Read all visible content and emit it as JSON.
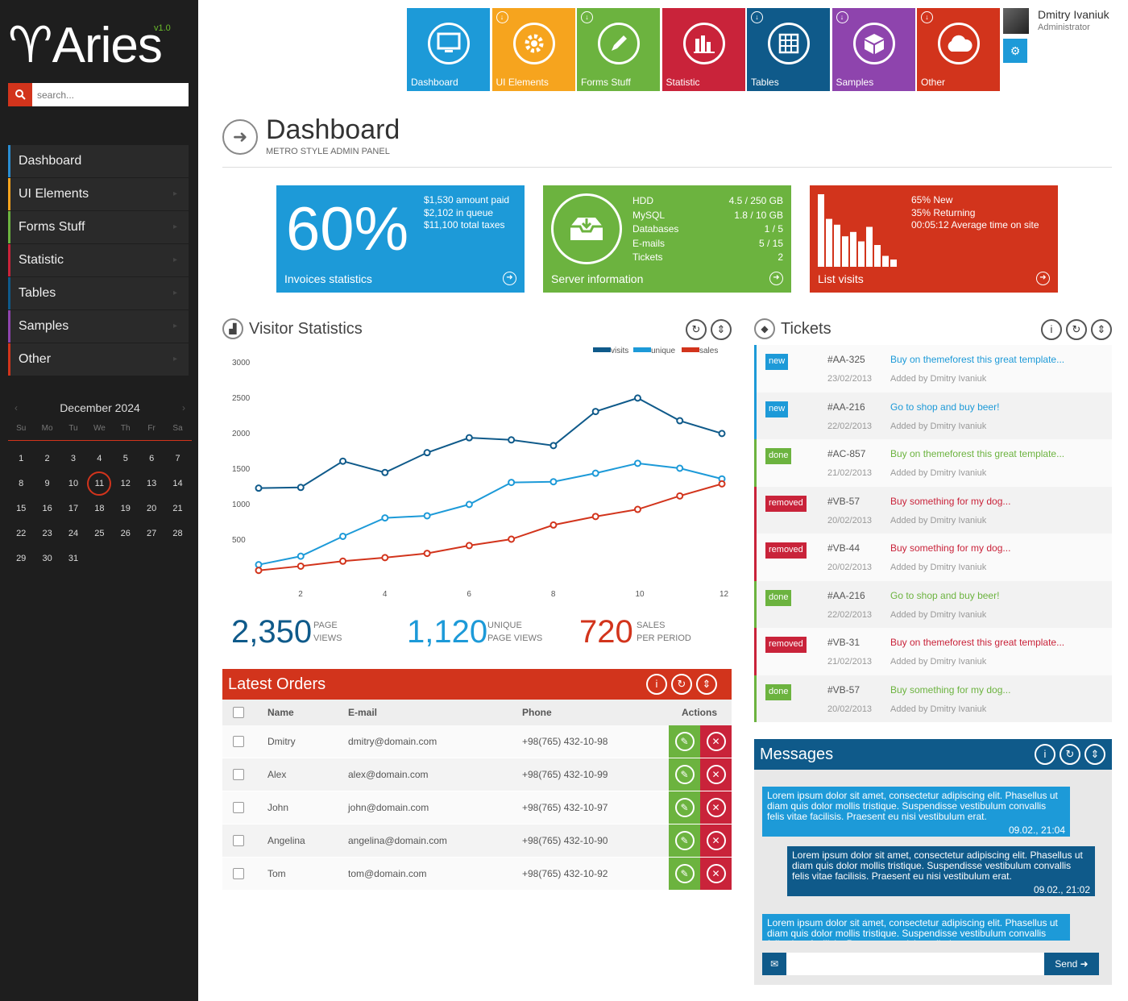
{
  "brand": {
    "name": "Aries",
    "version": "v1.0"
  },
  "search": {
    "placeholder": "search..."
  },
  "nav": [
    "Dashboard",
    "UI Elements",
    "Forms Stuff",
    "Statistic",
    "Tables",
    "Samples",
    "Other"
  ],
  "calendar": {
    "month": "December 2024",
    "dow": [
      "Su",
      "Mo",
      "Tu",
      "We",
      "Th",
      "Fr",
      "Sa"
    ],
    "today": 11,
    "days": [
      "1",
      "2",
      "3",
      "4",
      "5",
      "6",
      "7",
      "8",
      "9",
      "10",
      "11",
      "12",
      "13",
      "14",
      "15",
      "16",
      "17",
      "18",
      "19",
      "20",
      "21",
      "22",
      "23",
      "24",
      "25",
      "26",
      "27",
      "28",
      "29",
      "30",
      "31"
    ]
  },
  "tiles": [
    {
      "label": "Dashboard",
      "color": "#1d9ad8",
      "icon": "monitor-icon",
      "dl": false
    },
    {
      "label": "UI Elements",
      "color": "#f6a41e",
      "icon": "gear-icon",
      "dl": true
    },
    {
      "label": "Forms Stuff",
      "color": "#6cb33f",
      "icon": "pencil-icon",
      "dl": true
    },
    {
      "label": "Statistic",
      "color": "#c9233a",
      "icon": "bar-chart-icon",
      "dl": false
    },
    {
      "label": "Tables",
      "color": "#0f5a8a",
      "icon": "grid-icon",
      "dl": true
    },
    {
      "label": "Samples",
      "color": "#8e44ad",
      "icon": "box-icon",
      "dl": true
    },
    {
      "label": "Other",
      "color": "#d2341c",
      "icon": "cloud-icon",
      "dl": true
    }
  ],
  "user": {
    "name": "Dmitry Ivaniuk",
    "role": "Administrator"
  },
  "page": {
    "title": "Dashboard",
    "subtitle": "METRO STYLE ADMIN PANEL"
  },
  "stats": {
    "invoices": {
      "big": "60%",
      "lines": [
        "$1,530 amount paid",
        "$2,102 in queue",
        "$11,100 total taxes"
      ],
      "footer": "Invoices statistics",
      "color": "#1d9ad8"
    },
    "server": {
      "rows": [
        [
          "HDD",
          "4.5 / 250 GB"
        ],
        [
          "MySQL",
          "1.8 / 10 GB"
        ],
        [
          "Databases",
          "1 / 5"
        ],
        [
          "E-mails",
          "5 / 15"
        ],
        [
          "Tickets",
          "2"
        ]
      ],
      "footer": "Server information",
      "color": "#6cb33f"
    },
    "visits": {
      "lines": [
        "65% New",
        "35% Returning",
        "00:05:12 Average time on site"
      ],
      "footer": "List visits",
      "color": "#d2341c",
      "bars": [
        100,
        66,
        58,
        42,
        48,
        35,
        55,
        30,
        15,
        10
      ]
    }
  },
  "visitor": {
    "title": "Visitor Statistics",
    "totals": [
      {
        "value": "2,350",
        "l1": "PAGE",
        "l2": "VIEWS",
        "color": "#0f5a8a"
      },
      {
        "value": "1,120",
        "l1": "UNIQUE",
        "l2": "PAGE VIEWS",
        "color": "#1d9ad8"
      },
      {
        "value": "720",
        "l1": "SALES",
        "l2": "PER PERIOD",
        "color": "#d2341c"
      }
    ]
  },
  "chart_data": {
    "type": "line",
    "x": [
      1,
      2,
      3,
      4,
      5,
      6,
      7,
      8,
      9,
      10,
      11,
      12
    ],
    "ylim": [
      0,
      3000
    ],
    "yticks": [
      500,
      1000,
      1500,
      2000,
      2500,
      3000
    ],
    "xticks": [
      2,
      4,
      6,
      8,
      10,
      12
    ],
    "series": [
      {
        "name": "visits",
        "color": "#0f5a8a",
        "values": [
          1220,
          1230,
          1600,
          1440,
          1720,
          1930,
          1900,
          1820,
          2300,
          2490,
          2170,
          1990
        ]
      },
      {
        "name": "unique",
        "color": "#1d9ad8",
        "values": [
          140,
          260,
          540,
          800,
          830,
          990,
          1300,
          1310,
          1430,
          1570,
          1500,
          1350
        ]
      },
      {
        "name": "sales",
        "color": "#d2341c",
        "values": [
          60,
          120,
          190,
          240,
          300,
          410,
          500,
          700,
          820,
          920,
          1110,
          1280
        ]
      }
    ]
  },
  "orders": {
    "title": "Latest Orders",
    "headers": [
      "Name",
      "E-mail",
      "Phone",
      "Actions"
    ],
    "rows": [
      [
        "Dmitry",
        "dmitry@domain.com",
        "+98(765) 432-10-98"
      ],
      [
        "Alex",
        "alex@domain.com",
        "+98(765) 432-10-99"
      ],
      [
        "John",
        "john@domain.com",
        "+98(765) 432-10-97"
      ],
      [
        "Angelina",
        "angelina@domain.com",
        "+98(765) 432-10-90"
      ],
      [
        "Tom",
        "tom@domain.com",
        "+98(765) 432-10-92"
      ]
    ]
  },
  "tickets": {
    "title": "Tickets",
    "items": [
      {
        "status": "new",
        "id": "#AA-325",
        "date": "23/02/2013",
        "title": "Buy on themeforest this great template...",
        "by": "Added by Dmitry Ivaniuk"
      },
      {
        "status": "new",
        "id": "#AA-216",
        "date": "22/02/2013",
        "title": "Go to shop and buy beer!",
        "by": "Added by Dmitry Ivaniuk"
      },
      {
        "status": "done",
        "id": "#AC-857",
        "date": "21/02/2013",
        "title": "Buy on themeforest this great template...",
        "by": "Added by Dmitry Ivaniuk"
      },
      {
        "status": "removed",
        "id": "#VB-57",
        "date": "20/02/2013",
        "title": "Buy something for my dog...",
        "by": "Added by Dmitry Ivaniuk"
      },
      {
        "status": "removed",
        "id": "#VB-44",
        "date": "20/02/2013",
        "title": "Buy something for my dog...",
        "by": "Added by Dmitry Ivaniuk"
      },
      {
        "status": "done",
        "id": "#AA-216",
        "date": "22/02/2013",
        "title": "Go to shop and buy beer!",
        "by": "Added by Dmitry Ivaniuk"
      },
      {
        "status": "removed",
        "id": "#VB-31",
        "date": "21/02/2013",
        "title": "Buy on themeforest this great template...",
        "by": "Added by Dmitry Ivaniuk"
      },
      {
        "status": "done",
        "id": "#VB-57",
        "date": "20/02/2013",
        "title": "Buy something for my dog...",
        "by": "Added by Dmitry Ivaniuk"
      }
    ]
  },
  "status_colors": {
    "new": "#1d9ad8",
    "done": "#6cb33f",
    "removed": "#c9233a"
  },
  "messages": {
    "title": "Messages",
    "send": "Send",
    "items": [
      {
        "text": "Lorem ipsum dolor sit amet, consectetur adipiscing elit. Phasellus ut diam quis dolor mollis tristique. Suspendisse vestibulum convallis felis vitae facilisis. Praesent eu nisi vestibulum erat.",
        "time": "09.02., 21:04",
        "color": "#1d9ad8"
      },
      {
        "text": "Lorem ipsum dolor sit amet, consectetur adipiscing elit. Phasellus ut diam quis dolor mollis tristique. Suspendisse vestibulum convallis felis vitae facilisis. Praesent eu nisi vestibulum erat.",
        "time": "09.02., 21:02",
        "color": "#0f5a8a"
      },
      {
        "text": "Lorem ipsum dolor sit amet, consectetur adipiscing elit. Phasellus ut diam quis dolor mollis tristique. Suspendisse vestibulum convallis felis vitae facilisis. Praesent eu nisi vestibulum erat.",
        "time": "",
        "color": "#1d9ad8"
      }
    ]
  }
}
